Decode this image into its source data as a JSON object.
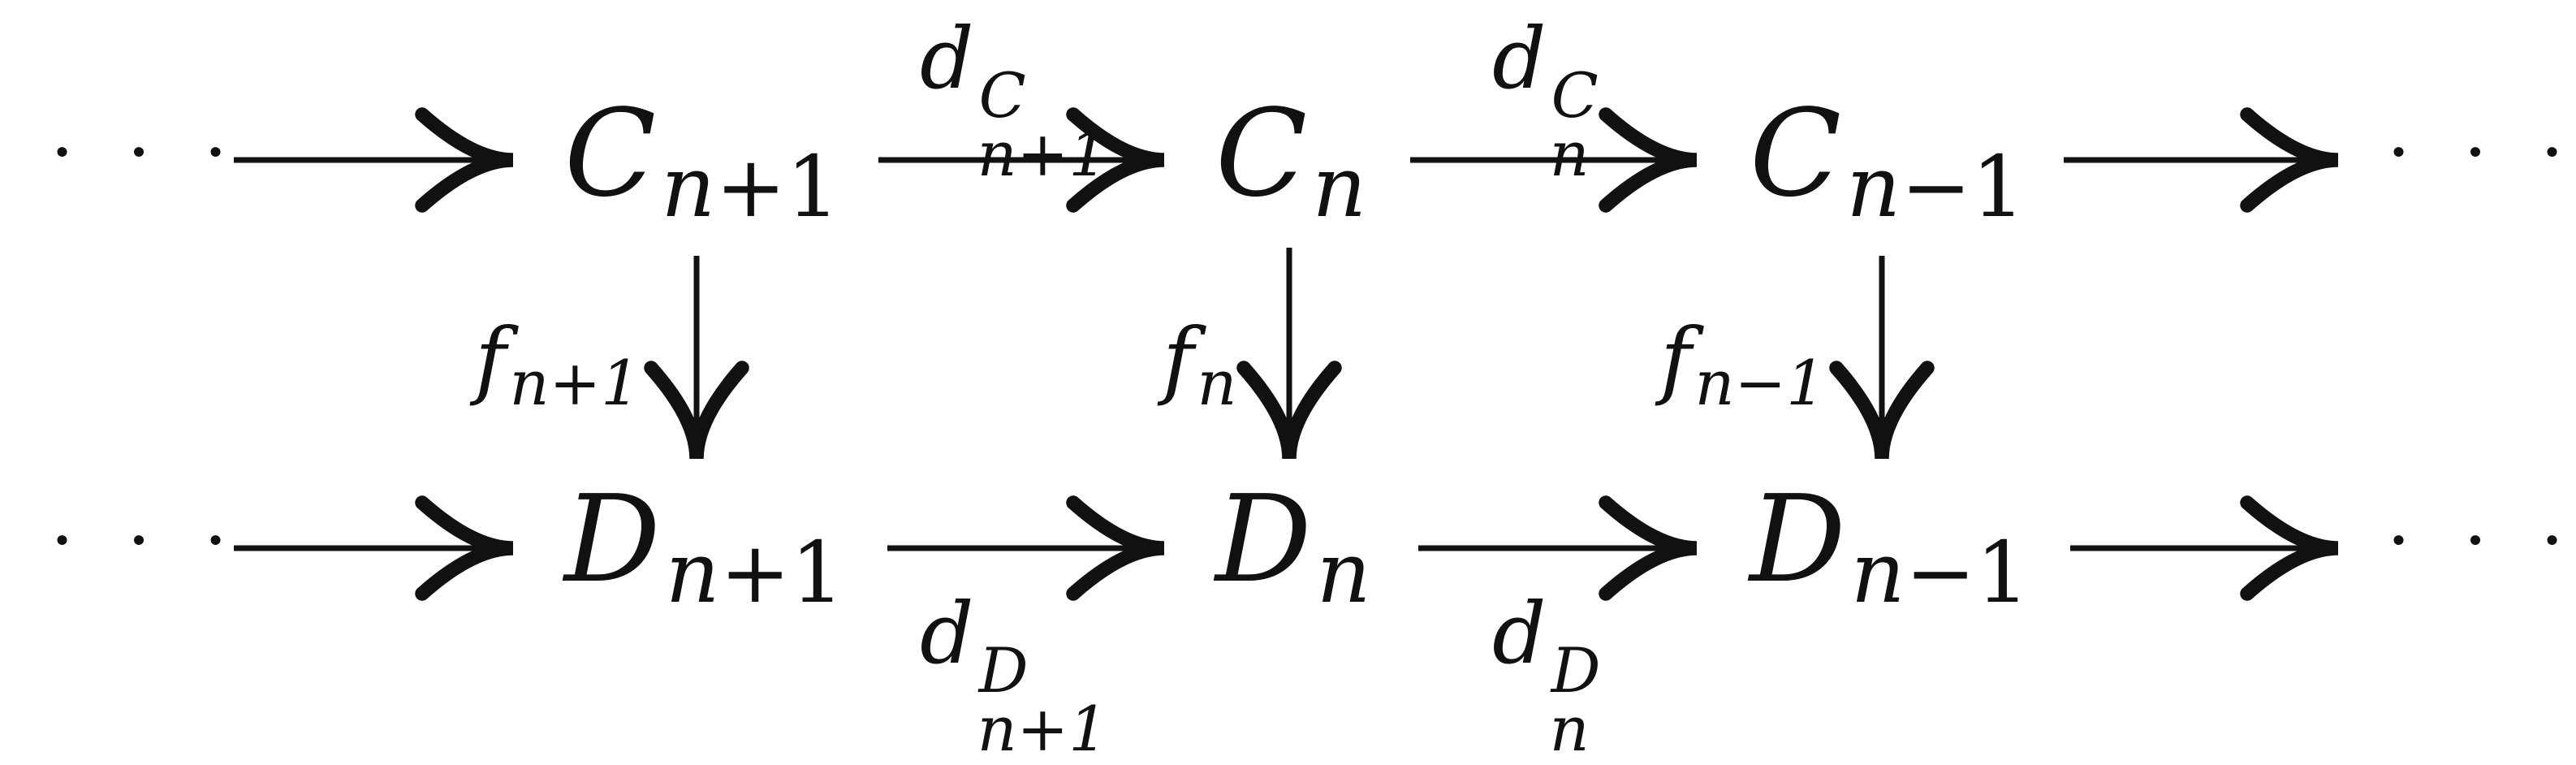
{
  "diagram": {
    "top_row": {
      "left_dots": "· · ·",
      "right_dots": "· · ·",
      "nodes": [
        {
          "main": "C",
          "sub_var": "n",
          "sub_op": "+",
          "sub_num": "1"
        },
        {
          "main": "C",
          "sub_var": "n",
          "sub_op": "",
          "sub_num": ""
        },
        {
          "main": "C",
          "sub_var": "n",
          "sub_op": "−",
          "sub_num": "1"
        }
      ],
      "maps": [
        {
          "main": "d",
          "sup": "C",
          "sub": "n+1"
        },
        {
          "main": "d",
          "sup": "C",
          "sub": "n"
        }
      ]
    },
    "bottom_row": {
      "left_dots": "· · ·",
      "right_dots": "· · ·",
      "nodes": [
        {
          "main": "D",
          "sub_var": "n",
          "sub_op": "+",
          "sub_num": "1"
        },
        {
          "main": "D",
          "sub_var": "n",
          "sub_op": "",
          "sub_num": ""
        },
        {
          "main": "D",
          "sub_var": "n",
          "sub_op": "−",
          "sub_num": "1"
        }
      ],
      "maps": [
        {
          "main": "d",
          "sup": "D",
          "sub": "n+1"
        },
        {
          "main": "d",
          "sup": "D",
          "sub": "n"
        }
      ]
    },
    "vertical_maps": [
      {
        "main": "f",
        "sub": "n+1"
      },
      {
        "main": "f",
        "sub": "n"
      },
      {
        "main": "f",
        "sub": "n−1"
      }
    ]
  }
}
